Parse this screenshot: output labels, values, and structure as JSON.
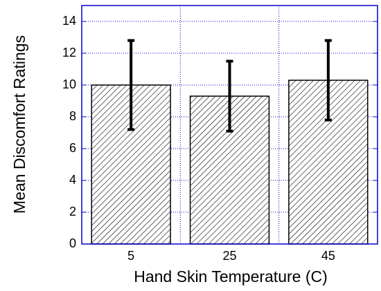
{
  "chart_data": {
    "type": "bar",
    "categories": [
      "5",
      "25",
      "45"
    ],
    "values": [
      10.0,
      9.3,
      10.3
    ],
    "errors": [
      2.8,
      2.2,
      2.5
    ],
    "xlabel": "Hand Skin Temperature (C)",
    "ylabel": "Mean Discomfort Ratings",
    "ylim": [
      0,
      15
    ],
    "yticks": [
      0,
      2,
      4,
      6,
      8,
      10,
      12,
      14
    ],
    "grid": true,
    "color": "#000000",
    "axis_color": "#0000cc"
  }
}
